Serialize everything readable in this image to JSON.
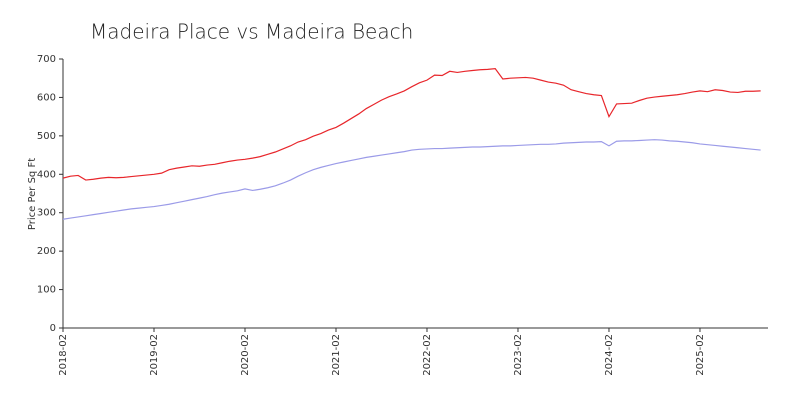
{
  "chart_data": {
    "type": "line",
    "title": "Madeira Place vs Madeira Beach",
    "y_label": "Price Per Sq Ft",
    "categories": [
      "2018-02",
      null,
      null,
      null,
      null,
      null,
      null,
      null,
      null,
      null,
      null,
      null,
      "2019-02",
      null,
      null,
      null,
      null,
      null,
      null,
      null,
      null,
      null,
      null,
      null,
      "2020-02",
      null,
      null,
      null,
      null,
      null,
      null,
      null,
      null,
      null,
      null,
      null,
      "2021-02",
      null,
      null,
      null,
      null,
      null,
      null,
      null,
      null,
      null,
      null,
      null,
      "2022-02",
      null,
      null,
      null,
      null,
      null,
      null,
      null,
      null,
      null,
      null,
      null,
      "2023-02",
      null,
      null,
      null,
      null,
      null,
      null,
      null,
      null,
      null,
      null,
      null,
      "2024-02",
      null,
      null,
      null,
      null,
      null,
      null,
      null,
      null,
      null,
      null,
      null,
      "2025-02",
      null,
      null,
      null,
      null,
      null,
      null,
      null,
      null
    ],
    "series": [
      {
        "color": "#e8262b",
        "values": [
          390,
          395,
          397,
          385,
          387,
          390,
          392,
          391,
          392,
          394,
          396,
          398,
          400,
          403,
          412,
          416,
          419,
          422,
          421,
          424,
          426,
          430,
          434,
          437,
          439,
          442,
          446,
          452,
          458,
          466,
          474,
          484,
          490,
          499,
          506,
          515,
          522,
          533,
          545,
          557,
          571,
          582,
          593,
          602,
          609,
          617,
          628,
          638,
          645,
          658,
          657,
          668,
          665,
          668,
          670,
          672,
          673,
          675,
          648,
          650,
          651,
          652,
          650,
          645,
          640,
          637,
          632,
          620,
          615,
          610,
          607,
          605,
          550,
          583,
          584,
          585,
          592,
          598,
          601,
          603,
          605,
          607,
          610,
          614,
          617,
          615,
          620,
          618,
          614,
          613,
          616,
          616,
          617
        ]
      },
      {
        "color": "#9b9be8",
        "values": [
          283,
          286,
          289,
          292,
          295,
          298,
          301,
          304,
          307,
          310,
          312,
          314,
          316,
          319,
          322,
          326,
          330,
          334,
          338,
          342,
          347,
          351,
          354,
          357,
          362,
          358,
          361,
          365,
          370,
          377,
          385,
          395,
          404,
          412,
          418,
          423,
          428,
          432,
          436,
          440,
          444,
          447,
          450,
          453,
          456,
          459,
          463,
          465,
          466,
          467,
          467,
          468,
          469,
          470,
          471,
          471,
          472,
          473,
          474,
          474,
          475,
          476,
          477,
          478,
          478,
          479,
          481,
          482,
          483,
          484,
          484,
          485,
          474,
          486,
          487,
          487,
          488,
          489,
          490,
          489,
          487,
          486,
          484,
          482,
          479,
          477,
          475,
          473,
          471,
          469,
          467,
          465,
          463
        ]
      }
    ],
    "ylim": [
      0,
      700
    ],
    "yticks": [
      0,
      100,
      200,
      300,
      400,
      500,
      600,
      700
    ]
  }
}
